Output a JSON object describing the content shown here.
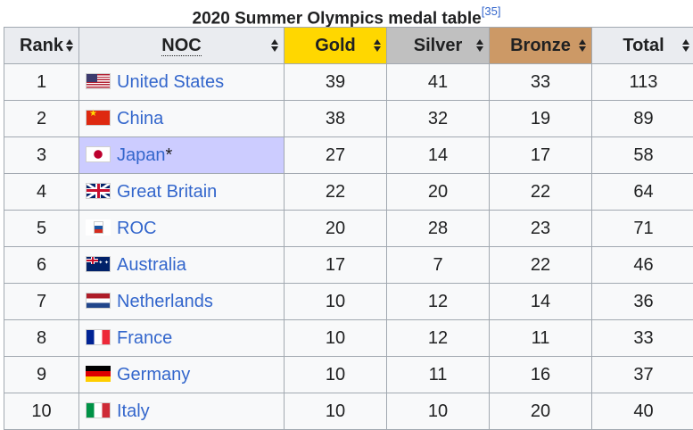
{
  "caption": {
    "title": "2020 Summer Olympics medal table",
    "ref": "[35]"
  },
  "headers": {
    "rank": "Rank",
    "noc": "NOC",
    "gold": "Gold",
    "silver": "Silver",
    "bronze": "Bronze",
    "total": "Total"
  },
  "colors": {
    "gold": "#ffd700",
    "silver": "#c0c0c0",
    "bronze": "#cc9966",
    "host": "#ccccff",
    "link": "#3366cc"
  },
  "rows": [
    {
      "rank": "1",
      "flag": "us-flag-icon",
      "noc": "United States",
      "host_mark": "",
      "gold": "39",
      "silver": "41",
      "bronze": "33",
      "total": "113"
    },
    {
      "rank": "2",
      "flag": "china-flag-icon",
      "noc": "China",
      "host_mark": "",
      "gold": "38",
      "silver": "32",
      "bronze": "19",
      "total": "89"
    },
    {
      "rank": "3",
      "flag": "japan-flag-icon",
      "noc": "Japan",
      "host_mark": "*",
      "gold": "27",
      "silver": "14",
      "bronze": "17",
      "total": "58"
    },
    {
      "rank": "4",
      "flag": "great-britain-flag-icon",
      "noc": "Great Britain",
      "host_mark": "",
      "gold": "22",
      "silver": "20",
      "bronze": "22",
      "total": "64"
    },
    {
      "rank": "5",
      "flag": "roc-flag-icon",
      "noc": "ROC",
      "host_mark": "",
      "gold": "20",
      "silver": "28",
      "bronze": "23",
      "total": "71"
    },
    {
      "rank": "6",
      "flag": "australia-flag-icon",
      "noc": "Australia",
      "host_mark": "",
      "gold": "17",
      "silver": "7",
      "bronze": "22",
      "total": "46"
    },
    {
      "rank": "7",
      "flag": "netherlands-flag-icon",
      "noc": "Netherlands",
      "host_mark": "",
      "gold": "10",
      "silver": "12",
      "bronze": "14",
      "total": "36"
    },
    {
      "rank": "8",
      "flag": "france-flag-icon",
      "noc": "France",
      "host_mark": "",
      "gold": "10",
      "silver": "12",
      "bronze": "11",
      "total": "33"
    },
    {
      "rank": "9",
      "flag": "germany-flag-icon",
      "noc": "Germany",
      "host_mark": "",
      "gold": "10",
      "silver": "11",
      "bronze": "16",
      "total": "37"
    },
    {
      "rank": "10",
      "flag": "italy-flag-icon",
      "noc": "Italy",
      "host_mark": "",
      "gold": "10",
      "silver": "10",
      "bronze": "20",
      "total": "40"
    }
  ]
}
